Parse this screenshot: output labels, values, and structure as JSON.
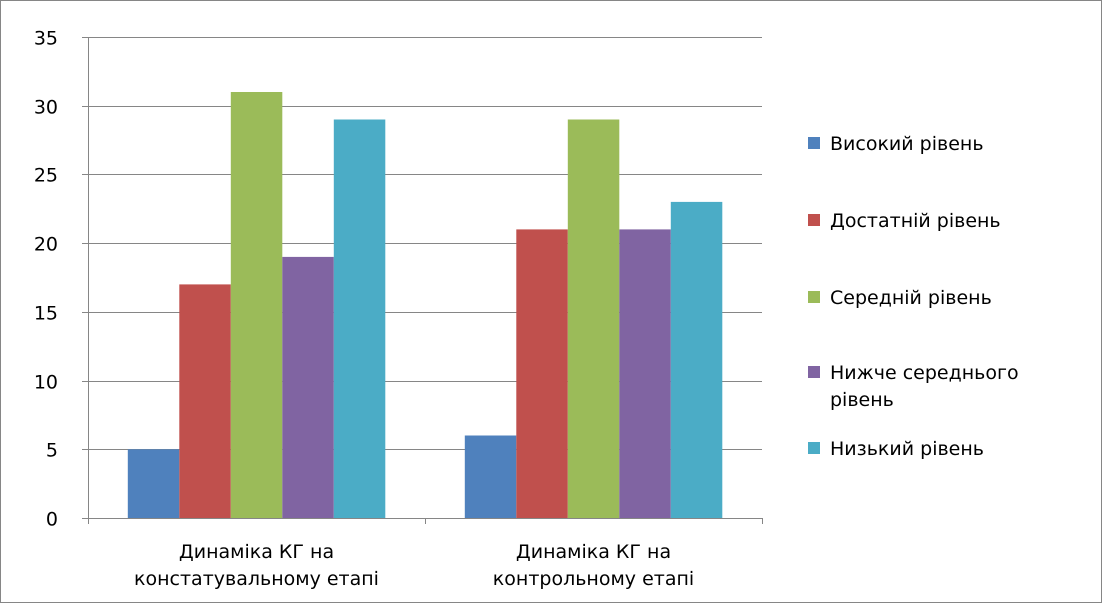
{
  "chart_data": {
    "type": "bar",
    "categories": [
      [
        "Динаміка КГ на",
        "констатувальному етапі"
      ],
      [
        "Динаміка КГ на",
        "контрольному  етапі"
      ]
    ],
    "series": [
      {
        "name": "Високий рівень",
        "values": [
          5,
          6
        ],
        "color": "#4F81BD"
      },
      {
        "name": "Достатній рівень",
        "values": [
          17,
          21
        ],
        "color": "#C0504D"
      },
      {
        "name": "Середній рівень",
        "values": [
          31,
          29
        ],
        "color": "#9BBB59"
      },
      {
        "name": "Нижче середнього рівень",
        "legend_lines": [
          "Нижче середнього",
          "рівень"
        ],
        "values": [
          19,
          21
        ],
        "color": "#8064A2"
      },
      {
        "name": "Низький рівень",
        "values": [
          29,
          23
        ],
        "color": "#4BACC6"
      }
    ],
    "ylim": [
      0,
      35
    ],
    "yticks": [
      0,
      5,
      10,
      15,
      20,
      25,
      30,
      35
    ],
    "grid": true,
    "legend_position": "right",
    "title": "",
    "xlabel": "",
    "ylabel": ""
  }
}
